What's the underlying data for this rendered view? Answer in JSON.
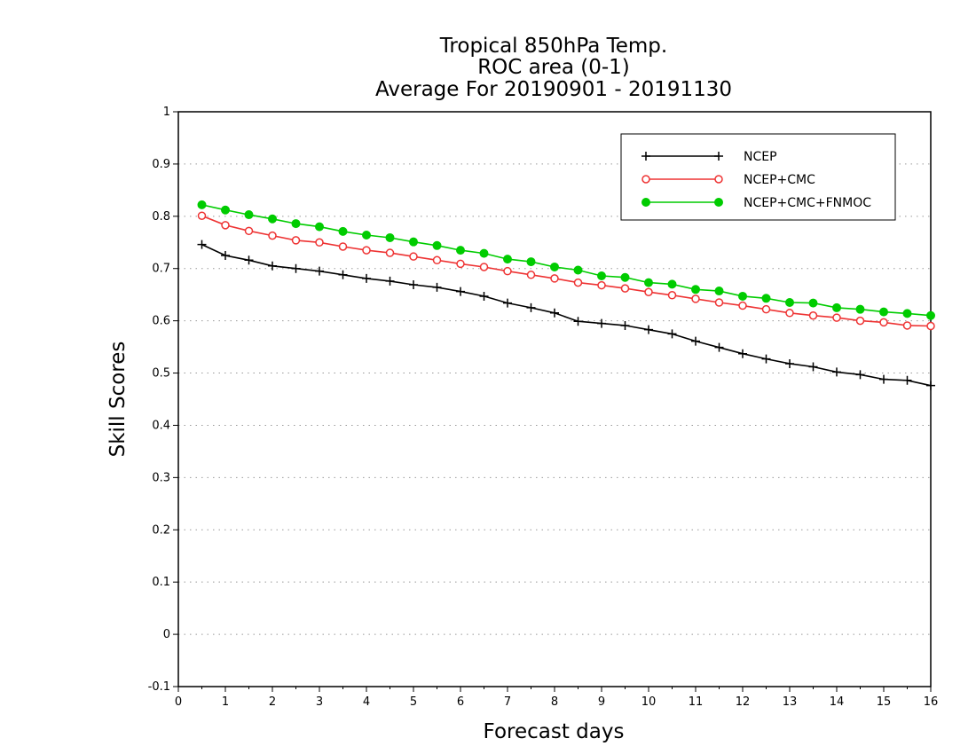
{
  "chart_data": {
    "type": "line",
    "title": [
      "Tropical 850hPa Temp.",
      "ROC area (0-1)",
      "Average For 20190901 - 20191130"
    ],
    "xlabel": "Forecast days",
    "ylabel": "Skill Scores",
    "xlim": [
      0,
      16
    ],
    "ylim": [
      -0.1,
      1
    ],
    "xticks": [
      "0",
      "1",
      "2",
      "3",
      "4",
      "5",
      "6",
      "7",
      "8",
      "9",
      "10",
      "11",
      "12",
      "13",
      "14",
      "15",
      "16"
    ],
    "yticks": [
      "-0.1",
      "0",
      "0.1",
      "0.2",
      "0.3",
      "0.4",
      "0.5",
      "0.6",
      "0.7",
      "0.8",
      "0.9",
      "1"
    ],
    "grid": "horizontal dotted",
    "legend_position": "top-right",
    "x": [
      0.5,
      1,
      1.5,
      2,
      2.5,
      3,
      3.5,
      4,
      4.5,
      5,
      5.5,
      6,
      6.5,
      7,
      7.5,
      8,
      8.5,
      9,
      9.5,
      10,
      10.5,
      11,
      11.5,
      12,
      12.5,
      13,
      13.5,
      14,
      14.5,
      15,
      15.5,
      16
    ],
    "series": [
      {
        "name": "NCEP",
        "color": "#000000",
        "marker": "plus",
        "values": [
          0.746,
          0.725,
          0.716,
          0.705,
          0.7,
          0.695,
          0.688,
          0.681,
          0.676,
          0.669,
          0.664,
          0.656,
          0.647,
          0.634,
          0.625,
          0.615,
          0.599,
          0.595,
          0.591,
          0.583,
          0.575,
          0.561,
          0.549,
          0.537,
          0.527,
          0.518,
          0.512,
          0.502,
          0.497,
          0.488,
          0.486,
          0.476
        ]
      },
      {
        "name": "NCEP+CMC",
        "color": "#ee3333",
        "marker": "open-circle",
        "values": [
          0.801,
          0.783,
          0.772,
          0.763,
          0.754,
          0.75,
          0.742,
          0.735,
          0.73,
          0.723,
          0.716,
          0.709,
          0.703,
          0.695,
          0.688,
          0.681,
          0.673,
          0.668,
          0.662,
          0.655,
          0.649,
          0.642,
          0.635,
          0.629,
          0.622,
          0.615,
          0.61,
          0.606,
          0.6,
          0.597,
          0.591,
          0.59
        ]
      },
      {
        "name": "NCEP+CMC+FNMOC",
        "color": "#00cc00",
        "marker": "filled-circle",
        "values": [
          0.822,
          0.812,
          0.803,
          0.795,
          0.786,
          0.78,
          0.771,
          0.764,
          0.759,
          0.751,
          0.744,
          0.735,
          0.729,
          0.718,
          0.713,
          0.703,
          0.697,
          0.686,
          0.683,
          0.673,
          0.67,
          0.66,
          0.657,
          0.647,
          0.643,
          0.635,
          0.634,
          0.625,
          0.622,
          0.617,
          0.614,
          0.61
        ]
      }
    ]
  }
}
